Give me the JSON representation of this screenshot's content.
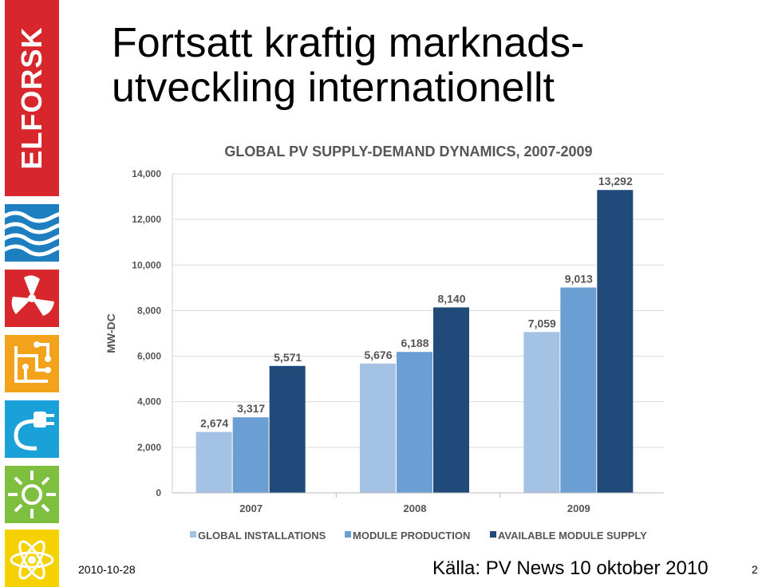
{
  "slide": {
    "title_line1": "Fortsatt kraftig marknads-",
    "title_line2": "utveckling internationellt",
    "date": "2010-10-28",
    "source": "Källa: PV News 10 oktober 2010",
    "page_number": "2"
  },
  "sidebar": {
    "logo_text": "ELFORSK",
    "icons": [
      "waves-icon",
      "fan-icon",
      "circuit-icon",
      "plug-icon",
      "sun-icon",
      "atom-icon"
    ]
  },
  "colors": {
    "logo_red": "#d7262c",
    "installations": "#a4c2e4",
    "production": "#6b9fd3",
    "supply": "#1f4a7a"
  },
  "chart_data": {
    "type": "bar",
    "title": "GLOBAL PV SUPPLY-DEMAND DYNAMICS, 2007-2009",
    "xlabel": "",
    "ylabel": "MW-DC",
    "categories": [
      "2007",
      "2008",
      "2009"
    ],
    "ylim": [
      0,
      14000
    ],
    "yticks": [
      {
        "value": 0,
        "label": "0"
      },
      {
        "value": 2000,
        "label": "2,000"
      },
      {
        "value": 4000,
        "label": "4,000"
      },
      {
        "value": 6000,
        "label": "6,000"
      },
      {
        "value": 8000,
        "label": "8,000"
      },
      {
        "value": 10000,
        "label": "10,000"
      },
      {
        "value": 12000,
        "label": "12,000"
      },
      {
        "value": 14000,
        "label": "14,000"
      }
    ],
    "grid": true,
    "legend_position": "bottom",
    "series": [
      {
        "name": "GLOBAL INSTALLATIONS",
        "color": "#a4c2e4",
        "values": [
          2674,
          5676,
          7059
        ],
        "labels": [
          "2,674",
          "5,676",
          "7,059"
        ]
      },
      {
        "name": "MODULE PRODUCTION",
        "color": "#6b9fd3",
        "values": [
          3317,
          6188,
          9013
        ],
        "labels": [
          "3,317",
          "6,188",
          "9,013"
        ]
      },
      {
        "name": "AVAILABLE MODULE SUPPLY",
        "color": "#1f4a7a",
        "values": [
          5571,
          8140,
          13292
        ],
        "labels": [
          "5,571",
          "8,140",
          "13,292"
        ]
      }
    ]
  }
}
